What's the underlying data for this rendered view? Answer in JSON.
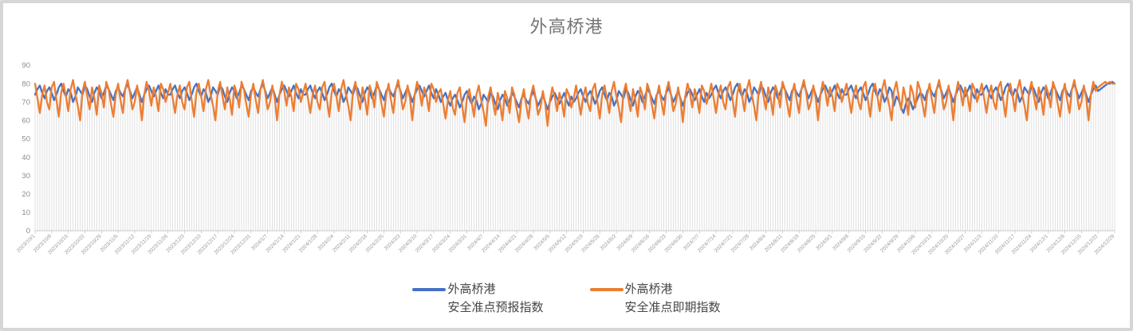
{
  "title": "外高桥港",
  "frame": {
    "background": "#ffffff",
    "border_color": "#d6d6d6"
  },
  "axis": {
    "y_label_color": "#8c8c8c",
    "x_label_color": "#9a9a9a",
    "axis_line_color": "#c8c8c8",
    "drop_line_color": "#dcdcdc"
  },
  "legend": {
    "items": [
      {
        "line1": "外高桥港",
        "line2": "安全准点预报指数",
        "color": "#4472C4"
      },
      {
        "line1": "外高桥港",
        "line2": "安全准点即期指数",
        "color": "#ED7D31"
      }
    ]
  },
  "chart_data": {
    "type": "line",
    "title": "外高桥港",
    "x_frequency": "daily",
    "x_start": "2023/10/1",
    "x_end": "2024/12/29",
    "n_points": 456,
    "x_tick_interval_days": 7,
    "x_label_rotation": -45,
    "ylim": [
      0,
      90
    ],
    "y_ticks": [
      0,
      10,
      20,
      30,
      40,
      50,
      60,
      70,
      80,
      90
    ],
    "grid": "vertical-drop-lines",
    "legend_position": "bottom",
    "x_tick_labels": [
      "2023/10/1",
      "2023/10/8",
      "2023/10/15",
      "2023/10/22",
      "2023/10/29",
      "2023/11/5",
      "2023/11/12",
      "2023/11/19",
      "2023/11/26",
      "2023/12/3",
      "2023/12/10",
      "2023/12/17",
      "2023/12/24",
      "2023/12/31",
      "2024/1/7",
      "2024/1/14",
      "2024/1/21",
      "2024/1/28",
      "2024/2/4",
      "2024/2/11",
      "2024/2/18",
      "2024/2/25",
      "2024/3/3",
      "2024/3/10",
      "2024/3/17",
      "2024/3/24",
      "2024/3/31",
      "2024/4/7",
      "2024/4/14",
      "2024/4/21",
      "2024/4/28",
      "2024/5/5",
      "2024/5/12",
      "2024/5/19",
      "2024/5/26",
      "2024/6/2",
      "2024/6/9",
      "2024/6/16",
      "2024/6/23",
      "2024/6/30",
      "2024/7/7",
      "2024/7/14",
      "2024/7/21",
      "2024/7/28",
      "2024/8/4",
      "2024/8/11",
      "2024/8/18",
      "2024/8/25",
      "2024/9/1",
      "2024/9/8",
      "2024/9/15",
      "2024/9/22",
      "2024/9/29",
      "2024/10/6",
      "2024/10/13",
      "2024/10/20",
      "2024/10/27",
      "2024/11/3",
      "2024/11/10",
      "2024/11/17",
      "2024/11/24",
      "2024/12/1",
      "2024/12/8",
      "2024/12/15",
      "2024/12/22",
      "2024/12/29"
    ],
    "series": [
      {
        "name": "外高桥港 安全准点预报指数",
        "color": "#4472C4",
        "values": [
          74,
          77,
          79,
          75,
          72,
          76,
          78,
          75,
          71,
          74,
          78,
          80,
          76,
          73,
          77,
          75,
          70,
          73,
          78,
          76,
          74,
          79,
          77,
          73,
          70,
          75,
          78,
          76,
          72,
          75,
          79,
          77,
          74,
          71,
          76,
          78,
          75,
          73,
          77,
          80,
          76,
          72,
          75,
          78,
          74,
          70,
          74,
          77,
          79,
          76,
          73,
          76,
          79,
          75,
          72,
          77,
          74,
          74,
          77,
          79,
          75,
          72,
          76,
          78,
          75,
          71,
          74,
          78,
          80,
          76,
          73,
          77,
          75,
          70,
          73,
          78,
          76,
          74,
          79,
          77,
          73,
          70,
          75,
          78,
          76,
          72,
          75,
          79,
          77,
          74,
          71,
          76,
          78,
          75,
          73,
          77,
          80,
          76,
          72,
          75,
          78,
          74,
          70,
          74,
          77,
          79,
          76,
          73,
          76,
          79,
          75,
          72,
          77,
          74,
          74,
          77,
          79,
          75,
          72,
          76,
          78,
          75,
          71,
          74,
          78,
          80,
          76,
          73,
          77,
          75,
          70,
          73,
          78,
          76,
          74,
          79,
          77,
          73,
          70,
          75,
          78,
          76,
          72,
          75,
          79,
          77,
          74,
          71,
          76,
          78,
          75,
          73,
          77,
          80,
          76,
          72,
          75,
          78,
          74,
          70,
          74,
          77,
          79,
          76,
          73,
          76,
          79,
          75,
          72,
          77,
          74,
          70,
          73,
          75,
          71,
          68,
          72,
          74,
          71,
          67,
          70,
          74,
          76,
          72,
          69,
          73,
          71,
          66,
          69,
          74,
          72,
          70,
          75,
          73,
          69,
          66,
          71,
          74,
          72,
          68,
          71,
          75,
          73,
          70,
          67,
          72,
          74,
          71,
          69,
          73,
          76,
          72,
          68,
          71,
          74,
          70,
          66,
          70,
          73,
          75,
          72,
          69,
          72,
          75,
          71,
          68,
          73,
          70,
          72,
          75,
          77,
          73,
          70,
          74,
          76,
          73,
          69,
          72,
          76,
          78,
          74,
          71,
          75,
          73,
          68,
          71,
          76,
          74,
          72,
          77,
          75,
          71,
          68,
          73,
          76,
          74,
          70,
          73,
          77,
          75,
          72,
          69,
          74,
          76,
          73,
          71,
          75,
          78,
          74,
          70,
          73,
          76,
          72,
          68,
          72,
          75,
          77,
          74,
          71,
          74,
          77,
          73,
          70,
          75,
          72,
          74,
          77,
          79,
          75,
          72,
          76,
          78,
          75,
          71,
          74,
          78,
          80,
          76,
          73,
          77,
          75,
          70,
          73,
          78,
          76,
          74,
          79,
          77,
          73,
          70,
          75,
          78,
          76,
          72,
          75,
          79,
          77,
          74,
          71,
          76,
          78,
          75,
          73,
          77,
          80,
          76,
          72,
          75,
          78,
          74,
          70,
          74,
          77,
          79,
          76,
          73,
          76,
          79,
          75,
          72,
          77,
          74,
          74,
          77,
          79,
          75,
          72,
          76,
          78,
          75,
          71,
          74,
          78,
          80,
          76,
          73,
          77,
          75,
          70,
          73,
          78,
          76,
          68,
          73,
          71,
          67,
          64,
          69,
          72,
          70,
          66,
          69,
          72,
          75,
          74,
          71,
          76,
          78,
          75,
          73,
          77,
          80,
          76,
          72,
          75,
          78,
          74,
          70,
          74,
          77,
          79,
          76,
          73,
          76,
          79,
          75,
          72,
          77,
          74,
          74,
          77,
          79,
          75,
          72,
          76,
          78,
          75,
          71,
          74,
          78,
          80,
          76,
          73,
          77,
          75,
          70,
          73,
          78,
          76,
          74,
          79,
          77,
          73,
          70,
          75,
          78,
          76,
          72,
          75,
          79,
          77,
          74,
          71,
          76,
          78,
          75,
          73,
          77,
          80,
          76,
          72,
          75,
          78,
          74,
          70,
          74,
          77,
          79,
          76,
          77,
          78,
          79,
          80,
          80,
          81,
          80
        ]
      },
      {
        "name": "外高桥港 安全准点即期指数",
        "color": "#ED7D31",
        "values": [
          80,
          72,
          64,
          74,
          79,
          70,
          66,
          78,
          81,
          71,
          62,
          75,
          80,
          73,
          65,
          77,
          82,
          74,
          68,
          60,
          76,
          81,
          73,
          66,
          78,
          72,
          63,
          79,
          75,
          67,
          81,
          77,
          69,
          62,
          74,
          80,
          71,
          64,
          77,
          82,
          75,
          66,
          70,
          79,
          72,
          60,
          74,
          81,
          76,
          68,
          78,
          73,
          65,
          80,
          77,
          70,
          75,
          80,
          72,
          64,
          74,
          79,
          70,
          66,
          78,
          81,
          71,
          62,
          75,
          80,
          73,
          65,
          77,
          82,
          74,
          68,
          60,
          76,
          81,
          73,
          66,
          78,
          72,
          63,
          79,
          75,
          67,
          81,
          77,
          69,
          62,
          74,
          80,
          71,
          64,
          77,
          82,
          75,
          66,
          70,
          79,
          72,
          60,
          74,
          81,
          76,
          68,
          78,
          73,
          65,
          80,
          77,
          70,
          75,
          80,
          72,
          64,
          74,
          79,
          70,
          66,
          78,
          81,
          71,
          62,
          75,
          80,
          73,
          65,
          77,
          82,
          74,
          68,
          60,
          76,
          81,
          73,
          66,
          78,
          72,
          63,
          79,
          75,
          67,
          81,
          77,
          69,
          62,
          74,
          80,
          71,
          64,
          77,
          82,
          75,
          66,
          70,
          79,
          72,
          60,
          74,
          81,
          76,
          68,
          78,
          73,
          65,
          80,
          77,
          70,
          75,
          77,
          69,
          61,
          71,
          76,
          67,
          63,
          75,
          78,
          68,
          59,
          72,
          77,
          70,
          62,
          74,
          79,
          71,
          65,
          57,
          73,
          78,
          70,
          63,
          75,
          69,
          60,
          76,
          72,
          64,
          78,
          74,
          66,
          59,
          71,
          77,
          68,
          61,
          74,
          79,
          72,
          63,
          67,
          76,
          69,
          57,
          71,
          78,
          73,
          65,
          75,
          70,
          62,
          77,
          74,
          67,
          72,
          79,
          71,
          63,
          73,
          78,
          69,
          65,
          77,
          80,
          70,
          61,
          74,
          79,
          72,
          64,
          76,
          81,
          73,
          67,
          59,
          75,
          80,
          72,
          65,
          77,
          71,
          62,
          78,
          74,
          66,
          80,
          76,
          68,
          61,
          73,
          79,
          70,
          63,
          76,
          81,
          74,
          65,
          69,
          78,
          71,
          59,
          73,
          80,
          75,
          67,
          77,
          72,
          64,
          79,
          76,
          69,
          74,
          80,
          72,
          64,
          74,
          79,
          70,
          66,
          78,
          81,
          71,
          62,
          75,
          80,
          73,
          65,
          77,
          82,
          74,
          68,
          60,
          76,
          81,
          73,
          66,
          78,
          72,
          63,
          79,
          75,
          67,
          81,
          77,
          69,
          62,
          74,
          80,
          71,
          64,
          77,
          82,
          75,
          66,
          70,
          79,
          72,
          60,
          74,
          81,
          76,
          68,
          78,
          73,
          65,
          80,
          77,
          70,
          75,
          80,
          72,
          64,
          74,
          79,
          70,
          66,
          78,
          81,
          71,
          62,
          75,
          80,
          73,
          65,
          77,
          82,
          74,
          68,
          60,
          76,
          81,
          73,
          66,
          78,
          72,
          63,
          79,
          75,
          67,
          81,
          77,
          69,
          62,
          74,
          80,
          71,
          64,
          77,
          82,
          75,
          66,
          70,
          79,
          72,
          60,
          74,
          81,
          76,
          68,
          78,
          73,
          65,
          80,
          77,
          70,
          75,
          80,
          72,
          64,
          74,
          79,
          70,
          66,
          78,
          81,
          71,
          62,
          75,
          80,
          73,
          65,
          77,
          82,
          74,
          68,
          60,
          76,
          81,
          73,
          66,
          78,
          72,
          63,
          79,
          75,
          67,
          81,
          77,
          69,
          62,
          74,
          80,
          71,
          64,
          77,
          82,
          75,
          66,
          70,
          79,
          72,
          60,
          74,
          81,
          76,
          78,
          79,
          80,
          81,
          80,
          81,
          80,
          80
        ]
      }
    ]
  }
}
